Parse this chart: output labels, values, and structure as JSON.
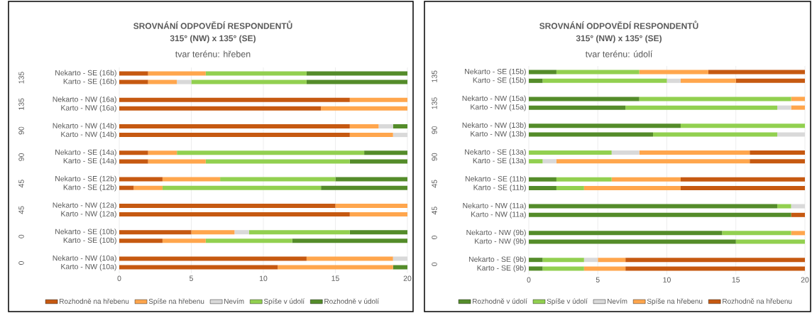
{
  "chart_data": [
    {
      "type": "bar",
      "orientation": "horizontal",
      "stacked": true,
      "title": "SROVNÁNÍ ODPOVĚDÍ RESPONDENTŮ",
      "subtitle": "315° (NW) x 135° (SE)",
      "annotations": [
        "tvar terénu: hřeben",
        "135",
        "135",
        "90",
        "90",
        "45",
        "45",
        "0",
        "0"
      ],
      "categories": [
        "Nekarto - SE (16b)",
        "Karto - SE (16b)",
        "Nekarto - NW (16a)",
        "Karto - NW (16a)",
        "Nekarto - NW (14b)",
        "Karto - NW (14b)",
        "Nekarto - SE (14a)",
        "Karto - SE (14a)",
        "Nekarto - SE (12b)",
        "Karto - SE (12b)",
        "Nekarto - NW (12a)",
        "Karto - NW (12a)",
        "Nekarto - SE (10b)",
        "Karto - SE (10b)",
        "Nekarto - NW (10a)",
        "Karto - NW (10a)"
      ],
      "series": [
        {
          "name": "Rozhodně na hřebenu",
          "color": "#c65911",
          "values": [
            2,
            2,
            16,
            14,
            16,
            16,
            2,
            2,
            3,
            1,
            15,
            16,
            5,
            3,
            13,
            11
          ]
        },
        {
          "name": "Spíše na hřebenu",
          "color": "#ffa64d",
          "values": [
            4,
            2,
            4,
            6,
            2,
            3,
            2,
            4,
            4,
            2,
            5,
            4,
            3,
            3,
            6,
            8
          ]
        },
        {
          "name": "Nevím",
          "color": "#d9d9d9",
          "values": [
            0,
            1,
            0,
            0,
            1,
            1,
            0,
            0,
            0,
            0,
            0,
            0,
            1,
            0,
            1,
            0
          ]
        },
        {
          "name": "Spíše v údolí",
          "color": "#92d050",
          "values": [
            7,
            8,
            0,
            0,
            0,
            0,
            13,
            10,
            8,
            11,
            0,
            0,
            7,
            6,
            0,
            0
          ]
        },
        {
          "name": "Rozhodně v údolí",
          "color": "#548c2a",
          "values": [
            7,
            7,
            0,
            0,
            1,
            0,
            3,
            4,
            5,
            6,
            0,
            0,
            4,
            8,
            0,
            1
          ]
        }
      ],
      "xlim": [
        0,
        20
      ],
      "xticks": [
        0,
        5,
        10,
        15,
        20
      ],
      "grid": "x",
      "legend": "bottom"
    },
    {
      "type": "bar",
      "orientation": "horizontal",
      "stacked": true,
      "title": "SROVNÁNÍ ODPOVĚDÍ RESPONDENTŮ",
      "subtitle": "315° (NW) x 135° (SE)",
      "annotations": [
        "tvar terénu: údolí",
        "135",
        "135",
        "90",
        "90",
        "45",
        "45",
        "0",
        "0"
      ],
      "categories": [
        "Nekarto - SE (15b)",
        "Karto - SE (15b)",
        "Nekarto - NW (15a)",
        "Karto - NW (15a)",
        "Nekarto - NW (13b)",
        "Karto - NW (13b)",
        "Nekarto - SE (13a)",
        "Karto - SE (13a)",
        "Nekarto - SE (11b)",
        "Karto - SE (11b)",
        "Nekarto - NW (11a)",
        "Karto - NW (11a)",
        "Nekarto - NW (9b)",
        "Karto - NW (9b)",
        "Nekarto - SE (9b)",
        "Karto - SE (9b)"
      ],
      "series": [
        {
          "name": "Rozhodně v údolí",
          "color": "#548c2a",
          "values": [
            2,
            1,
            8,
            7,
            11,
            9,
            0,
            0,
            2,
            2,
            18,
            19,
            14,
            15,
            1,
            1
          ]
        },
        {
          "name": "Spíše v údolí",
          "color": "#92d050",
          "values": [
            6,
            9,
            11,
            11,
            9,
            9,
            6,
            1,
            4,
            2,
            1,
            0,
            5,
            5,
            3,
            3
          ]
        },
        {
          "name": "Nevím",
          "color": "#d9d9d9",
          "values": [
            0,
            1,
            0,
            1,
            0,
            2,
            2,
            1,
            0,
            0,
            1,
            0,
            0,
            0,
            1,
            0
          ]
        },
        {
          "name": "Spíše na hřebenu",
          "color": "#ffa64d",
          "values": [
            5,
            4,
            1,
            1,
            0,
            0,
            8,
            14,
            5,
            7,
            0,
            0,
            1,
            0,
            2,
            3
          ]
        },
        {
          "name": "Rozhodně na hřebenu",
          "color": "#c65911",
          "values": [
            7,
            5,
            0,
            0,
            0,
            0,
            4,
            4,
            9,
            9,
            0,
            1,
            0,
            0,
            13,
            13
          ]
        }
      ],
      "xlim": [
        0,
        20
      ],
      "xticks": [
        0,
        5,
        10,
        15,
        20
      ],
      "grid": "x",
      "legend": "bottom"
    }
  ]
}
